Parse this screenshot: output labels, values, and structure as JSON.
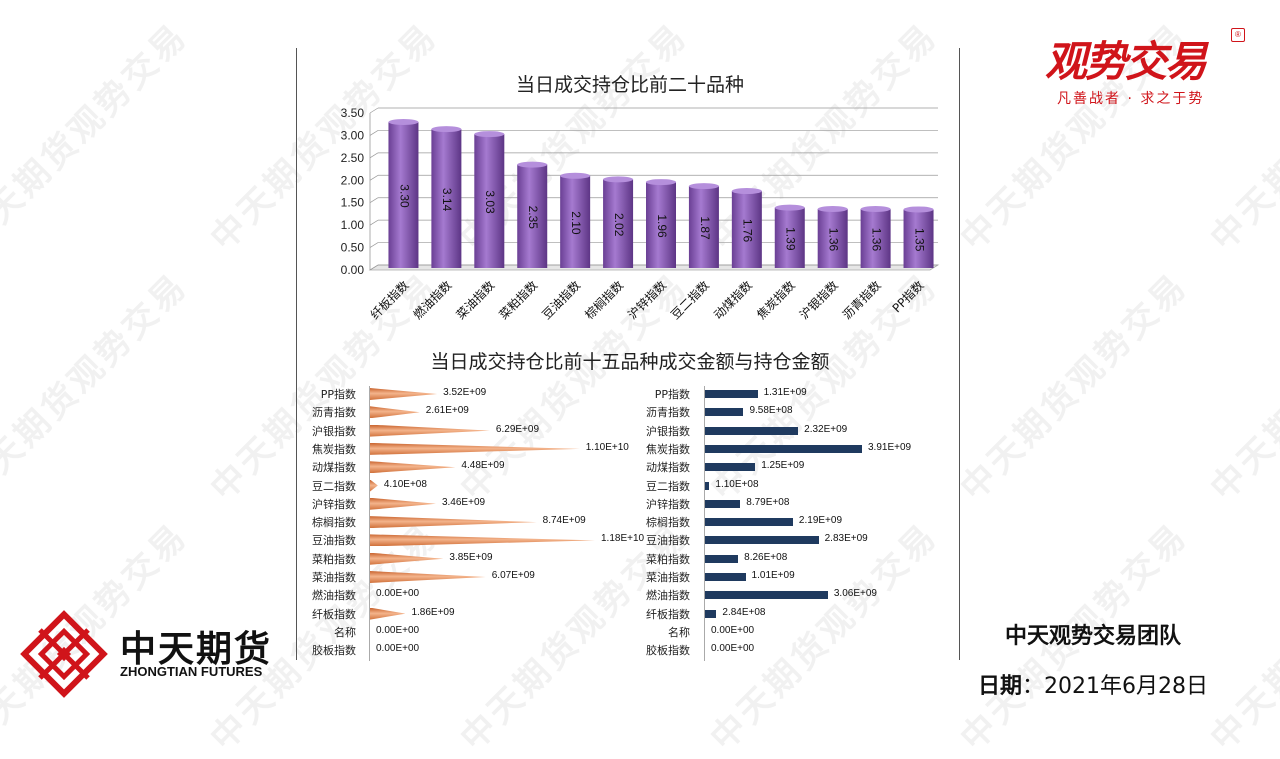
{
  "watermark_text": "中天期货观势交易",
  "brand": {
    "name": "观势交易",
    "slogan": "凡善战者 · 求之于势",
    "accent": "#d0141a"
  },
  "company": {
    "name_cn": "中天期货",
    "name_en": "ZHONGTIAN FUTURES",
    "logo_color": "#d0141a"
  },
  "footer": {
    "team": "中天观势交易团队",
    "date_label": "日期",
    "date_sep": "：",
    "date_value": "2021年6月28日"
  },
  "chart_data": [
    {
      "type": "bar",
      "title": "当日成交持仓比前二十品种",
      "categories": [
        "纤板指数",
        "燃油指数",
        "菜油指数",
        "菜粕指数",
        "豆油指数",
        "棕榈指数",
        "沪锌指数",
        "豆二指数",
        "动煤指数",
        "焦炭指数",
        "沪银指数",
        "沥青指数",
        "PP指数"
      ],
      "values": [
        3.3,
        3.14,
        3.03,
        2.35,
        2.1,
        2.02,
        1.96,
        1.87,
        1.76,
        1.39,
        1.36,
        1.36,
        1.35
      ],
      "value_labels": [
        "3.30",
        "3.14",
        "3.03",
        "2.35",
        "2.10",
        "2.02",
        "1.96",
        "1.87",
        "1.76",
        "1.39",
        "1.36",
        "1.36",
        "1.35"
      ],
      "yticks": [
        "3.50",
        "3.00",
        "2.50",
        "2.00",
        "1.50",
        "1.00",
        "0.50",
        "0.00"
      ],
      "ylim": [
        0,
        3.5
      ],
      "grid": true,
      "color": "#8c5bb5"
    },
    {
      "type": "bar",
      "title": "当日成交持仓比前十五品种成交金额与持仓金额",
      "orientation": "horizontal",
      "categories": [
        "PP指数",
        "沥青指数",
        "沪银指数",
        "焦炭指数",
        "动煤指数",
        "豆二指数",
        "沪锌指数",
        "棕榈指数",
        "豆油指数",
        "菜粕指数",
        "菜油指数",
        "燃油指数",
        "纤板指数",
        "名称",
        "胶板指数"
      ],
      "values": [
        3520000000.0,
        2610000000.0,
        6290000000.0,
        11000000000.0,
        4480000000.0,
        410000000.0,
        3460000000.0,
        8740000000.0,
        11800000000.0,
        3850000000.0,
        6070000000.0,
        0,
        1860000000.0,
        0,
        0
      ],
      "value_labels": [
        "3.52E+09",
        "2.61E+09",
        "6.29E+09",
        "1.10E+10",
        "4.48E+09",
        "4.10E+08",
        "3.46E+09",
        "8.74E+09",
        "1.18E+10",
        "3.85E+09",
        "6.07E+09",
        "0.00E+00",
        "1.86E+09",
        "0.00E+00",
        "0.00E+00"
      ],
      "color": "#e8895a"
    },
    {
      "type": "bar",
      "orientation": "horizontal",
      "categories": [
        "PP指数",
        "沥青指数",
        "沪银指数",
        "焦炭指数",
        "动煤指数",
        "豆二指数",
        "沪锌指数",
        "棕榈指数",
        "豆油指数",
        "菜粕指数",
        "菜油指数",
        "燃油指数",
        "纤板指数",
        "名称",
        "胶板指数"
      ],
      "values": [
        1310000000.0,
        958000000.0,
        2320000000.0,
        3910000000.0,
        1250000000.0,
        110000000.0,
        879000000.0,
        2190000000.0,
        2830000000.0,
        826000000.0,
        1010000000.0,
        3060000000.0,
        284000000.0,
        0,
        0
      ],
      "value_labels": [
        "1.31E+09",
        "9.58E+08",
        "2.32E+09",
        "3.91E+09",
        "1.25E+09",
        "1.10E+08",
        "8.79E+08",
        "2.19E+09",
        "2.83E+09",
        "8.26E+08",
        "1.01E+09",
        "3.06E+09",
        "2.84E+08",
        "0.00E+00",
        "0.00E+00"
      ],
      "color": "#1f3a5f"
    }
  ]
}
